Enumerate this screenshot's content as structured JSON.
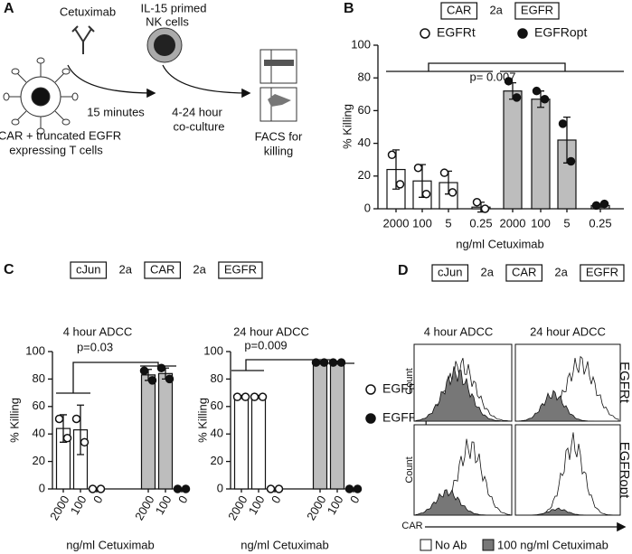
{
  "panel_labels": [
    "A",
    "B",
    "C",
    "D"
  ],
  "panel_a": {
    "antibody": "Cetuximab",
    "nk_cells": [
      "IL-15 primed",
      "NK cells"
    ],
    "step1": "15 minutes",
    "step2": [
      "4-24 hour",
      "co-culture"
    ],
    "t_cells": [
      "CAR + truncated EGFR",
      "expressing T cells"
    ],
    "readout": [
      "FACS for",
      "killing"
    ]
  },
  "chart_data": [
    {
      "type": "bar",
      "construct": [
        "CAR",
        "2a",
        "EGFR"
      ],
      "categories": [
        "2000",
        "100",
        "5",
        "0.25",
        "2000",
        "100",
        "5",
        "0.25"
      ],
      "xlabel": "ng/ml Cetuximab",
      "ylabel": "% Killing",
      "annotations": [
        "p= 0.007"
      ],
      "ylim": [
        0,
        100
      ],
      "yticks": [
        0,
        20,
        40,
        60,
        80,
        100
      ],
      "series": [
        {
          "name": "EGFRt",
          "color": "#ffffff",
          "values": [
            24,
            17,
            16,
            1,
            null,
            null,
            null,
            null
          ],
          "errors": [
            12,
            10,
            7,
            3,
            null,
            null,
            null,
            null
          ],
          "points": [
            [
              33,
              15
            ],
            [
              25,
              9
            ],
            [
              22,
              10
            ],
            [
              4,
              0
            ],
            null,
            null,
            null,
            null
          ]
        },
        {
          "name": "EGFRopt",
          "color": "#bdbdbd",
          "values": [
            null,
            null,
            null,
            null,
            72,
            67,
            42,
            2
          ],
          "errors": [
            null,
            null,
            null,
            null,
            5,
            5,
            14,
            1
          ],
          "points": [
            null,
            null,
            null,
            null,
            [
              78,
              68
            ],
            [
              72,
              67
            ],
            [
              52,
              29
            ],
            [
              2,
              3
            ]
          ]
        }
      ]
    },
    {
      "type": "bar",
      "construct": [
        "cJun",
        "2a",
        "CAR",
        "2a",
        "EGFR"
      ],
      "title": "4 hour ADCC",
      "categories": [
        "2000",
        "100",
        "0",
        "2000",
        "100",
        "0"
      ],
      "xlabel": "ng/ml Cetuximab",
      "ylabel": "% Killing",
      "annotations": [
        "p=0.03"
      ],
      "ylim": [
        0,
        100
      ],
      "yticks": [
        0,
        20,
        40,
        60,
        80,
        100
      ],
      "series": [
        {
          "color": "#ffffff",
          "values": [
            44,
            43,
            0,
            null,
            null,
            null
          ],
          "errors": [
            10,
            18,
            0,
            null,
            null,
            null
          ],
          "points": [
            [
              51,
              37
            ],
            [
              51,
              34
            ],
            [
              0,
              0
            ],
            null,
            null,
            null
          ]
        },
        {
          "color": "#bdbdbd",
          "values": [
            null,
            null,
            null,
            83,
            84,
            0
          ],
          "errors": [
            null,
            null,
            null,
            4,
            4,
            0
          ],
          "points": [
            null,
            null,
            null,
            [
              86,
              79
            ],
            [
              88,
              80
            ],
            [
              0,
              0
            ]
          ]
        }
      ]
    },
    {
      "type": "bar",
      "title": "24 hour ADCC",
      "categories": [
        "2000",
        "100",
        "0",
        "2000",
        "100",
        "0"
      ],
      "xlabel": "ng/ml Cetuximab",
      "ylabel": "% Killing",
      "annotations": [
        "p=0.009"
      ],
      "ylim": [
        0,
        100
      ],
      "yticks": [
        0,
        20,
        40,
        60,
        80,
        100
      ],
      "series": [
        {
          "name": "EGFRt",
          "color": "#ffffff",
          "values": [
            67,
            67,
            0,
            null,
            null,
            null
          ],
          "errors": [
            1,
            1,
            0,
            null,
            null,
            null
          ],
          "points": [
            [
              67,
              67
            ],
            [
              67,
              67
            ],
            [
              0,
              0
            ],
            null,
            null,
            null
          ]
        },
        {
          "name": "EGFRopt",
          "color": "#bdbdbd",
          "values": [
            null,
            null,
            null,
            92,
            92,
            0
          ],
          "errors": [
            null,
            null,
            null,
            1,
            1,
            0
          ],
          "points": [
            null,
            null,
            null,
            [
              92,
              92
            ],
            [
              92,
              92
            ],
            [
              0,
              0
            ]
          ]
        }
      ]
    }
  ],
  "panel_d": {
    "construct": [
      "cJun",
      "2a",
      "CAR",
      "2a",
      "EGFR"
    ],
    "columns": [
      "4 hour ADCC",
      "24 hour ADCC"
    ],
    "rows": [
      "EGFRt",
      "EGFRopt"
    ],
    "ylabel": "Count",
    "xlabel": "CAR",
    "legend": [
      "No Ab",
      "100 ng/ml Cetuximab"
    ]
  }
}
